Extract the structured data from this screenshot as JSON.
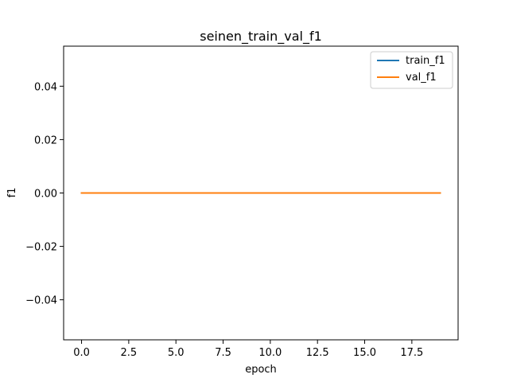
{
  "chart_data": {
    "type": "line",
    "title": "seinen_train_val_f1",
    "xlabel": "epoch",
    "ylabel": "f1",
    "xlim": [
      -0.95,
      19.95
    ],
    "ylim": [
      -0.055,
      0.055
    ],
    "xticks": [
      0,
      2.5,
      5,
      7.5,
      10,
      12.5,
      15,
      17.5
    ],
    "xtick_labels": [
      "0.0",
      "2.5",
      "5.0",
      "7.5",
      "10.0",
      "12.5",
      "15.0",
      "17.5"
    ],
    "yticks": [
      -0.04,
      -0.02,
      0,
      0.02,
      0.04
    ],
    "ytick_labels": [
      "−0.04",
      "−0.02",
      "0.00",
      "0.02",
      "0.04"
    ],
    "grid": false,
    "legend": "top-right",
    "x": [
      0,
      1,
      2,
      3,
      4,
      5,
      6,
      7,
      8,
      9,
      10,
      11,
      12,
      13,
      14,
      15,
      16,
      17,
      18,
      19
    ],
    "series": [
      {
        "name": "train_f1",
        "color": "#1f77b4",
        "values": [
          0,
          0,
          0,
          0,
          0,
          0,
          0,
          0,
          0,
          0,
          0,
          0,
          0,
          0,
          0,
          0,
          0,
          0,
          0,
          0
        ]
      },
      {
        "name": "val_f1",
        "color": "#ff7f0e",
        "values": [
          0,
          0,
          0,
          0,
          0,
          0,
          0,
          0,
          0,
          0,
          0,
          0,
          0,
          0,
          0,
          0,
          0,
          0,
          0,
          0
        ]
      }
    ]
  }
}
